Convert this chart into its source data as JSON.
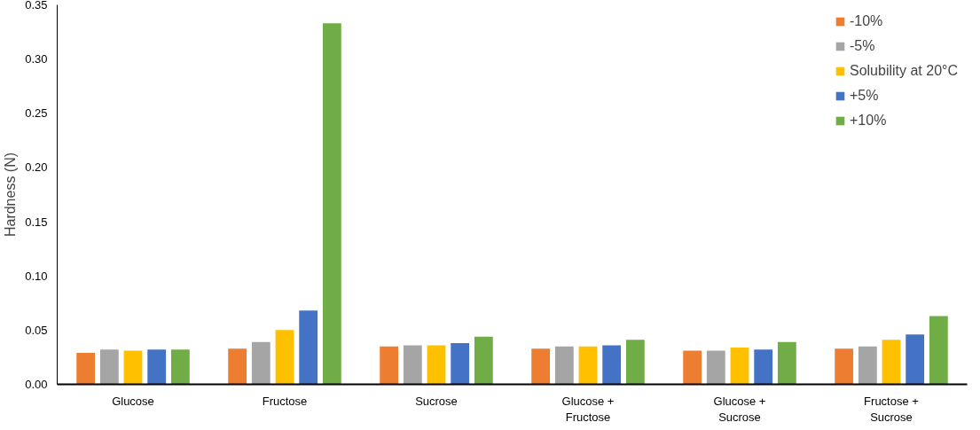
{
  "chart_data": {
    "type": "bar",
    "ylabel": "Hardness (N)",
    "categories": [
      "Glucose",
      "Fructose",
      "Sucrose",
      "Glucose +\nFructose",
      "Glucose +\nSucrose",
      "Fructose +\nSucrose"
    ],
    "ylim": [
      0,
      0.35
    ],
    "yticks": [
      {
        "value": 0,
        "label": "0.00"
      },
      {
        "value": 0.05,
        "label": "0.05"
      },
      {
        "value": 0.1,
        "label": "0.10"
      },
      {
        "value": 0.15,
        "label": "0.15"
      },
      {
        "value": 0.2,
        "label": "0.20"
      },
      {
        "value": 0.25,
        "label": "0.25"
      },
      {
        "value": 0.3,
        "label": "0.30"
      },
      {
        "value": 0.35,
        "label": "0.35"
      }
    ],
    "grid": false,
    "legend": "top right",
    "series": [
      {
        "name": "-10%",
        "color": "#ed7d31",
        "values": [
          0.029,
          0.033,
          0.035,
          0.033,
          0.031,
          0.033
        ]
      },
      {
        "name": "-5%",
        "color": "#a5a5a5",
        "values": [
          0.032,
          0.039,
          0.036,
          0.035,
          0.031,
          0.035
        ]
      },
      {
        "name": "Solubility at 20°C",
        "color": "#ffc000",
        "values": [
          0.031,
          0.05,
          0.036,
          0.035,
          0.034,
          0.041
        ]
      },
      {
        "name": "+5%",
        "color": "#4472c4",
        "values": [
          0.032,
          0.068,
          0.038,
          0.036,
          0.032,
          0.046
        ]
      },
      {
        "name": "+10%",
        "color": "#70ad47",
        "values": [
          0.032,
          0.333,
          0.044,
          0.041,
          0.039,
          0.063
        ]
      }
    ]
  }
}
